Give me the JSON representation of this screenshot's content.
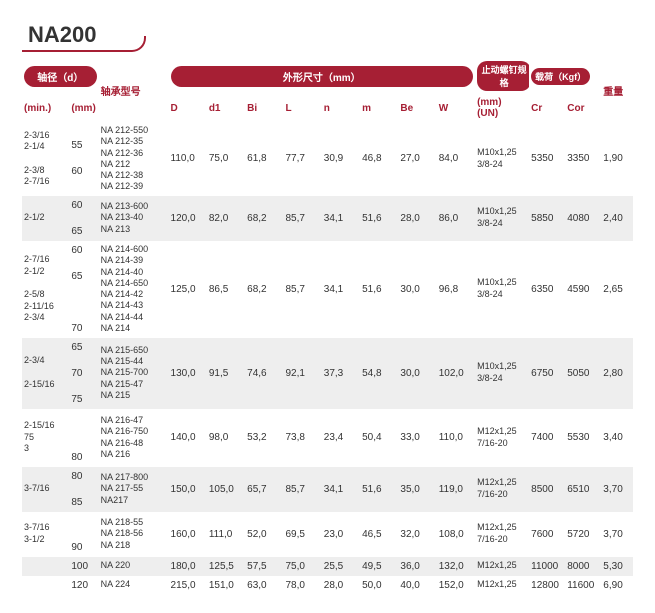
{
  "title": "NA200",
  "headers": {
    "shaft_dia": "轴径（d）",
    "min": "(min.)",
    "mm": "(mm)",
    "bearing_model": "轴承型号",
    "outline_mm": "外形尺寸（mm）",
    "D": "D",
    "d1": "d1",
    "Bi": "Bi",
    "L": "L",
    "n": "n",
    "m": "m",
    "Be": "Be",
    "W": "W",
    "stop_screw": "止动螺钉规格",
    "un": "(mm)\n(UN)",
    "load_kgf": "载荷（Kgf）",
    "Cr": "Cr",
    "Cor": "Cor",
    "weight": "重量"
  },
  "rows": [
    {
      "min": [
        "2-3/16",
        "2-1/4",
        "",
        "2-3/8",
        "2-7/16"
      ],
      "mm": [
        "55",
        "",
        "60"
      ],
      "models": [
        "NA 212-550",
        "NA 212-35",
        "NA 212-36",
        "NA 212",
        "NA 212-38",
        "NA 212-39"
      ],
      "D": "110,0",
      "d1": "75,0",
      "Bi": "61,8",
      "L": "77,7",
      "n": "30,9",
      "m": "46,8",
      "Be": "27,0",
      "W": "84,0",
      "thread": [
        "M10x1,25",
        "3/8-24"
      ],
      "Cr": "5350",
      "Cor": "3350",
      "wt": "1,90",
      "alt": false
    },
    {
      "min": [
        "2-1/2"
      ],
      "mm": [
        "60",
        "",
        "65"
      ],
      "models": [
        "NA 213-600",
        "NA 213-40",
        "NA 213"
      ],
      "D": "120,0",
      "d1": "82,0",
      "Bi": "68,2",
      "L": "85,7",
      "n": "34,1",
      "m": "51,6",
      "Be": "28,0",
      "W": "86,0",
      "thread": [
        "M10x1,25",
        "3/8-24"
      ],
      "Cr": "5850",
      "Cor": "4080",
      "wt": "2,40",
      "alt": true
    },
    {
      "min": [
        "2-7/16",
        "2-1/2",
        "",
        "2-5/8",
        "2-11/16",
        "2-3/4"
      ],
      "mm": [
        "60",
        "",
        "65",
        "",
        "",
        "",
        "70"
      ],
      "models": [
        "NA 214-600",
        "NA 214-39",
        "NA 214-40",
        "NA 214-650",
        "NA 214-42",
        "NA 214-43",
        "NA 214-44",
        "NA 214"
      ],
      "D": "125,0",
      "d1": "86,5",
      "Bi": "68,2",
      "L": "85,7",
      "n": "34,1",
      "m": "51,6",
      "Be": "30,0",
      "W": "96,8",
      "thread": [
        "M10x1,25",
        "3/8-24"
      ],
      "Cr": "6350",
      "Cor": "4590",
      "wt": "2,65",
      "alt": false
    },
    {
      "min": [
        "2-3/4",
        "",
        "2-15/16"
      ],
      "mm": [
        "65",
        "",
        "70",
        "",
        "75"
      ],
      "models": [
        "NA 215-650",
        "NA 215-44",
        "NA 215-700",
        "NA 215-47",
        "NA 215"
      ],
      "D": "130,0",
      "d1": "91,5",
      "Bi": "74,6",
      "L": "92,1",
      "n": "37,3",
      "m": "54,8",
      "Be": "30,0",
      "W": "102,0",
      "thread": [
        "M10x1,25",
        "3/8-24"
      ],
      "Cr": "6750",
      "Cor": "5050",
      "wt": "2,80",
      "alt": true
    },
    {
      "min": [
        "2-15/16",
        "75",
        "3"
      ],
      "mm": [
        "",
        "",
        "",
        "80"
      ],
      "models": [
        "NA 216-47",
        "NA 216-750",
        "NA 216-48",
        "NA 216"
      ],
      "D": "140,0",
      "d1": "98,0",
      "Bi": "53,2",
      "L": "73,8",
      "n": "23,4",
      "m": "50,4",
      "Be": "33,0",
      "W": "110,0",
      "thread": [
        "M12x1,25",
        "7/16-20"
      ],
      "Cr": "7400",
      "Cor": "5530",
      "wt": "3,40",
      "alt": false
    },
    {
      "min": [
        "3-7/16"
      ],
      "mm": [
        "80",
        "",
        "85"
      ],
      "models": [
        "NA 217-800",
        "NA 217-55",
        "NA217"
      ],
      "D": "150,0",
      "d1": "105,0",
      "Bi": "65,7",
      "L": "85,7",
      "n": "34,1",
      "m": "51,6",
      "Be": "35,0",
      "W": "119,0",
      "thread": [
        "M12x1,25",
        "7/16-20"
      ],
      "Cr": "8500",
      "Cor": "6510",
      "wt": "3,70",
      "alt": true
    },
    {
      "min": [
        "3-7/16",
        "3-1/2"
      ],
      "mm": [
        "",
        "",
        "90"
      ],
      "models": [
        "NA 218-55",
        "NA 218-56",
        "NA 218"
      ],
      "D": "160,0",
      "d1": "111,0",
      "Bi": "52,0",
      "L": "69,5",
      "n": "23,0",
      "m": "46,5",
      "Be": "32,0",
      "W": "108,0",
      "thread": [
        "M12x1,25",
        "7/16-20"
      ],
      "Cr": "7600",
      "Cor": "5720",
      "wt": "3,70",
      "alt": false
    },
    {
      "min": [
        ""
      ],
      "mm": [
        "100"
      ],
      "models": [
        "NA 220"
      ],
      "D": "180,0",
      "d1": "125,5",
      "Bi": "57,5",
      "L": "75,0",
      "n": "25,5",
      "m": "49,5",
      "Be": "36,0",
      "W": "132,0",
      "thread": [
        "M12x1,25"
      ],
      "Cr": "11000",
      "Cor": "8000",
      "wt": "5,30",
      "alt": true
    },
    {
      "min": [
        ""
      ],
      "mm": [
        "120"
      ],
      "models": [
        "NA 224"
      ],
      "D": "215,0",
      "d1": "151,0",
      "Bi": "63,0",
      "L": "78,0",
      "n": "28,0",
      "m": "50,0",
      "Be": "40,0",
      "W": "152,0",
      "thread": [
        "M12x1,25"
      ],
      "Cr": "12800",
      "Cor": "11600",
      "wt": "6,90",
      "alt": false
    }
  ],
  "style": {
    "accent": "#a61f34",
    "alt_row_bg": "#eee",
    "font_body": 10,
    "font_title": 22
  }
}
